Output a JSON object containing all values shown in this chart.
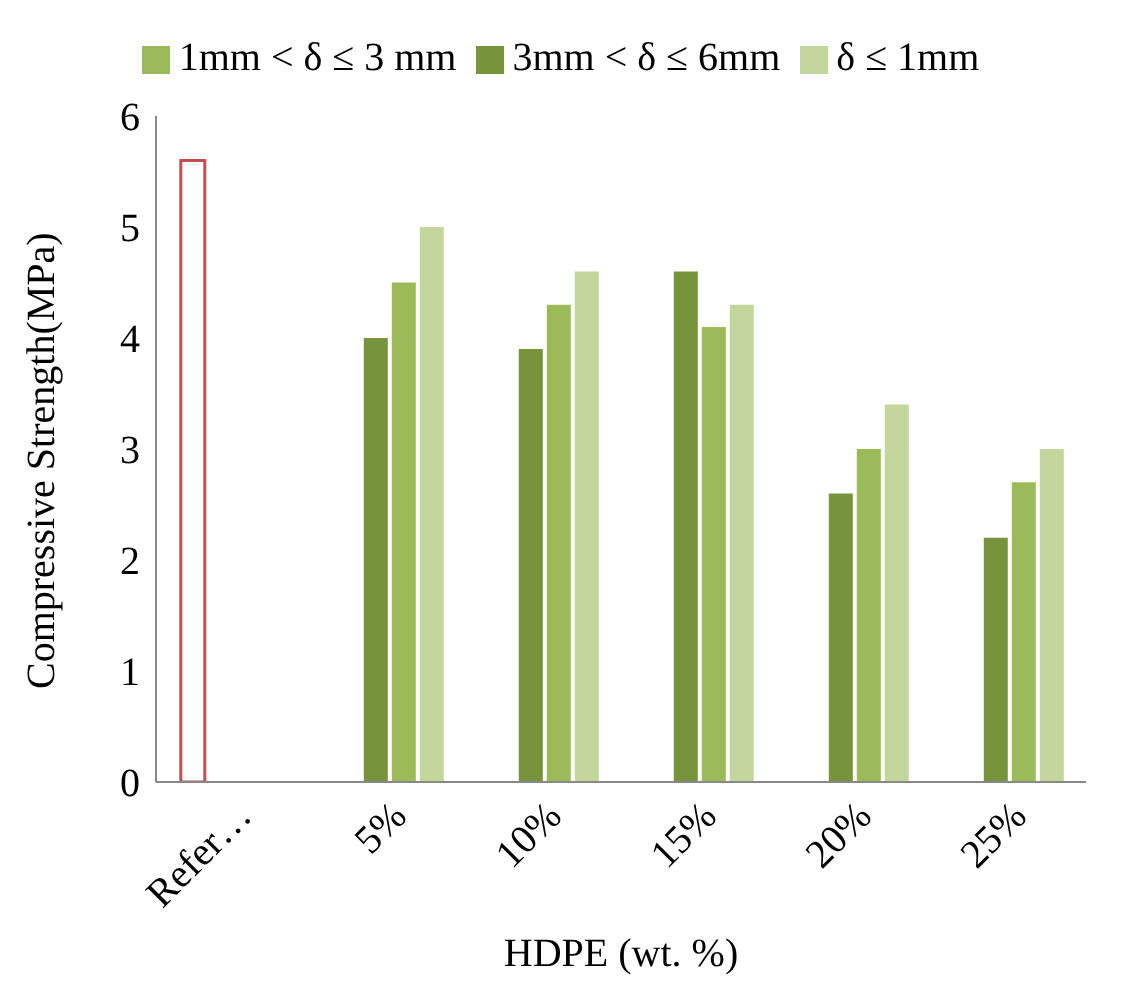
{
  "chart_data": {
    "type": "bar",
    "xlabel": "HDPE (wt. %)",
    "ylabel": "Compressive Strength(MPa)",
    "categories": [
      "Refer…",
      "5%",
      "10%",
      "15%",
      "20%",
      "25%"
    ],
    "series": [
      {
        "color": "#c0504d",
        "values": [
          5.6,
          null,
          null,
          null,
          null,
          null
        ]
      },
      {
        "name": "3mm < δ ≤ 6mm",
        "color": "#77933c",
        "values": [
          null,
          4.0,
          3.9,
          4.6,
          2.6,
          2.2
        ]
      },
      {
        "name": "1mm < δ ≤ 3 mm",
        "color": "#9bbb59",
        "values": [
          null,
          4.5,
          4.3,
          4.1,
          3.0,
          2.7
        ]
      },
      {
        "name": "δ ≤ 1mm",
        "color": "#c3d69b",
        "values": [
          null,
          5.0,
          4.6,
          4.3,
          3.4,
          3.0
        ]
      }
    ],
    "ylim": [
      0,
      6
    ],
    "yticks": [
      0,
      1,
      2,
      3,
      4,
      5,
      6
    ],
    "grid": false,
    "legend": "top"
  }
}
